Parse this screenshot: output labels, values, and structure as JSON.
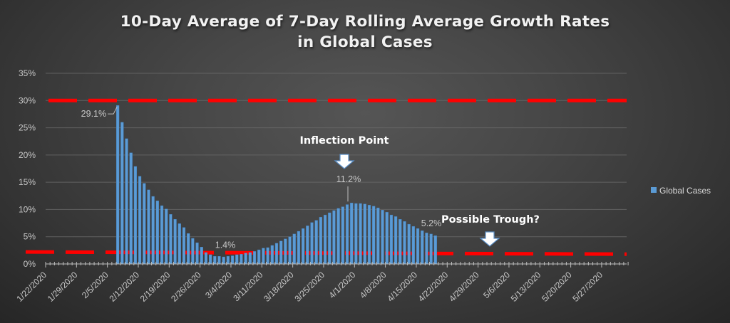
{
  "chart_data": {
    "type": "bar",
    "title": "10-Day Average of 7-Day Rolling Average Growth Rates in Global Cases",
    "title_lines": [
      "10-Day Average of 7-Day Rolling Average Growth Rates",
      "in Global Cases"
    ],
    "xlabel": "",
    "ylabel": "",
    "ylim": [
      0,
      35
    ],
    "y_ticks": [
      "0%",
      "5%",
      "10%",
      "15%",
      "20%",
      "25%",
      "30%",
      "35%"
    ],
    "y_tick_values": [
      0,
      5,
      10,
      15,
      20,
      25,
      30,
      35
    ],
    "x_range": [
      "1/22/2020",
      "6/2/2020"
    ],
    "x_tick_labels": [
      "1/22/2020",
      "1/29/2020",
      "2/5/2020",
      "2/12/2020",
      "2/19/2020",
      "2/26/2020",
      "3/4/2020",
      "3/11/2020",
      "3/18/2020",
      "3/25/2020",
      "4/1/2020",
      "4/8/2020",
      "4/15/2020",
      "4/22/2020",
      "4/29/2020",
      "5/6/2020",
      "5/13/2020",
      "5/20/2020",
      "5/27/2020"
    ],
    "grid": true,
    "legend": {
      "position": "right",
      "entries": [
        "Global Cases"
      ]
    },
    "series": [
      {
        "name": "Global Cases",
        "color": "#5b9bd5",
        "start_date": "2/7/2020",
        "end_date": "4/18/2020",
        "values": [
          29.1,
          26.0,
          23.0,
          20.4,
          17.9,
          16.1,
          14.8,
          13.6,
          12.4,
          11.6,
          10.7,
          10.1,
          9.1,
          8.2,
          7.4,
          6.7,
          5.6,
          4.7,
          3.9,
          3.1,
          2.1,
          1.7,
          1.4,
          1.4,
          1.3,
          1.4,
          1.5,
          1.7,
          1.8,
          2.0,
          2.1,
          2.3,
          2.6,
          2.9,
          3.0,
          3.4,
          3.8,
          4.2,
          4.6,
          5.0,
          5.5,
          6.0,
          6.5,
          7.0,
          7.6,
          8.0,
          8.6,
          9.0,
          9.4,
          9.8,
          10.2,
          10.5,
          10.9,
          11.2,
          11.1,
          11.1,
          11.0,
          10.8,
          10.6,
          10.3,
          9.9,
          9.5,
          9.0,
          8.7,
          8.2,
          7.8,
          7.3,
          6.9,
          6.5,
          6.1,
          5.7,
          5.5,
          5.2
        ]
      }
    ],
    "reference_lines": [
      {
        "name": "Upper threshold",
        "color": "#ff0000",
        "style": "dashed",
        "start_value": 30,
        "end_value": 30
      },
      {
        "name": "Lower trend",
        "color": "#ff0000",
        "style": "dashed",
        "start_value": 2.2,
        "end_value": 1.8
      }
    ],
    "data_labels": [
      {
        "text": "29.1%",
        "date_index": 0,
        "value": 29.1
      },
      {
        "text": "1.4%",
        "date_index": 22,
        "value": 1.4
      },
      {
        "text": "11.2%",
        "date_index": 53,
        "value": 11.2
      },
      {
        "text": "5.2%",
        "date_index": 72,
        "value": 5.2
      }
    ],
    "annotations": [
      {
        "text": "Inflection Point",
        "arrow": "down-arrow",
        "value": 11.2
      },
      {
        "text": "Possible Trough?",
        "arrow": "down-arrow",
        "value": 1.9
      }
    ]
  }
}
